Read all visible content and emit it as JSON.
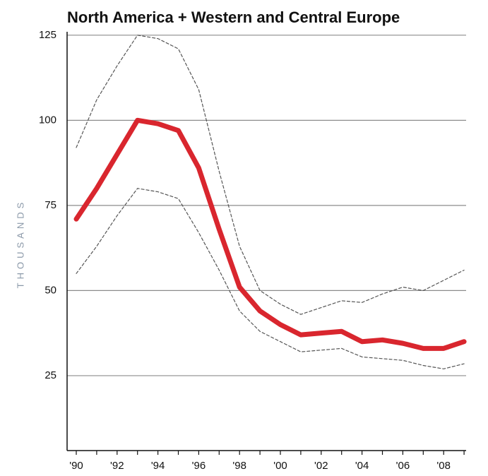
{
  "chart_data": {
    "type": "line",
    "title": "North America + Western and Central Europe",
    "y_label": "THOUSANDS",
    "x": [
      1990,
      1991,
      1992,
      1993,
      1994,
      1995,
      1996,
      1997,
      1998,
      1999,
      2000,
      2001,
      2002,
      2003,
      2004,
      2005,
      2006,
      2007,
      2008,
      2009
    ],
    "series": [
      {
        "color": "#555555",
        "dashed": true,
        "width": 1.2,
        "values": [
          92,
          106,
          116,
          125,
          124,
          121,
          109,
          85,
          63,
          50,
          46,
          43,
          45,
          47,
          46.5,
          49,
          51,
          50,
          53,
          56
        ]
      },
      {
        "color": "#555555",
        "dashed": true,
        "width": 1.2,
        "values": [
          55,
          63,
          72,
          80,
          79,
          77,
          67,
          56,
          44,
          38,
          35,
          32,
          32.5,
          33,
          30.5,
          30,
          29.5,
          28,
          27,
          28.5
        ]
      },
      {
        "color": "#d9262e",
        "dashed": false,
        "width": 7,
        "values": [
          71,
          80,
          90,
          100,
          99,
          97,
          86,
          68,
          51,
          44,
          40,
          37,
          37.5,
          38,
          35,
          35.5,
          34.5,
          33,
          33,
          35
        ]
      }
    ],
    "xlim": [
      1989.55,
      2009.1
    ],
    "xticks": [
      {
        "value": 1990,
        "label": "'90"
      },
      {
        "value": 1992,
        "label": "'92"
      },
      {
        "value": 1994,
        "label": "'94"
      },
      {
        "value": 1996,
        "label": "'96"
      },
      {
        "value": 1998,
        "label": "'98"
      },
      {
        "value": 2000,
        "label": "'00"
      },
      {
        "value": 2002,
        "label": "'02"
      },
      {
        "value": 2004,
        "label": "'04"
      },
      {
        "value": 2006,
        "label": "'06"
      },
      {
        "value": 2008,
        "label": "'08"
      }
    ],
    "xminorticks": [
      1991,
      1993,
      1995,
      1997,
      1999,
      2001,
      2003,
      2005,
      2007,
      2009
    ],
    "ylim": [
      3,
      126
    ],
    "yticks": [
      25,
      50,
      75,
      100,
      125
    ],
    "grid": true
  }
}
